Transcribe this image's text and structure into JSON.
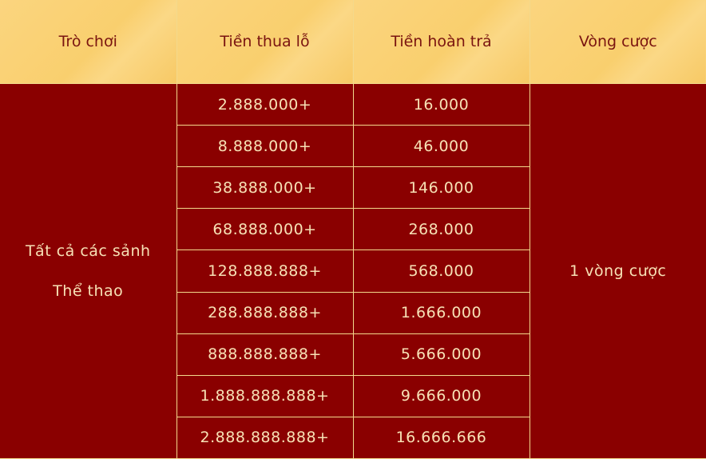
{
  "headers": [
    "Trò chơi",
    "Tiền thua lỗ",
    "Tiền hoàn trả",
    "Vòng cược"
  ],
  "games": [
    "Tất cả các sảnh",
    "Thể thao"
  ],
  "wagering": "1 vòng cược",
  "rows": [
    {
      "loss": "2.888.000+",
      "refund": "16.000"
    },
    {
      "loss": "8.888.000+",
      "refund": "46.000"
    },
    {
      "loss": "38.888.000+",
      "refund": "146.000"
    },
    {
      "loss": "68.888.000+",
      "refund": "268.000"
    },
    {
      "loss": "128.888.888+",
      "refund": "568.000"
    },
    {
      "loss": "288.888.888+",
      "refund": "1.666.000"
    },
    {
      "loss": "888.888.888+",
      "refund": "5.666.000"
    },
    {
      "loss": "1.888.888.888+",
      "refund": "9.666.000"
    },
    {
      "loss": "2.888.888.888+",
      "refund": "16.666.666"
    }
  ],
  "colors": {
    "header_bg": "#f9cf6e",
    "body_bg": "#8a0000",
    "border": "#f3d98c",
    "header_text": "#7a1410",
    "body_text": "#f7e1b5"
  }
}
